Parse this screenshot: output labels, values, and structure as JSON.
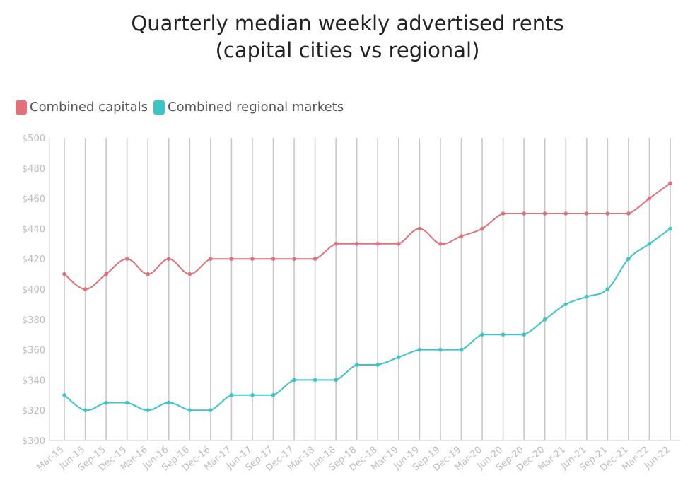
{
  "title_line1": "Quarterly median weekly advertised rents",
  "title_line2": "(capital cities vs regional)",
  "chart_data": {
    "type": "line",
    "title": "Quarterly median weekly advertised rents (capital cities vs regional)",
    "xlabel": "",
    "ylabel": "",
    "ylim": [
      300,
      500
    ],
    "y_ticks": [
      "$300",
      "$320",
      "$340",
      "$360",
      "$380",
      "$400",
      "$420",
      "$440",
      "$460",
      "$480",
      "$500"
    ],
    "grid": "vertical",
    "legend_position": "top-left",
    "categories": [
      "Mar-15",
      "Jun-15",
      "Sep-15",
      "Dec-15",
      "Mar-16",
      "Jun-16",
      "Sep-16",
      "Dec-16",
      "Mar-17",
      "Jun-17",
      "Sep-17",
      "Dec-17",
      "Mar-18",
      "Jun-18",
      "Sep-18",
      "Dec-18",
      "Mar-19",
      "Jun-19",
      "Sep-19",
      "Dec-19",
      "Mar-20",
      "Jun-20",
      "Sep-20",
      "Dec-20",
      "Mar-21",
      "Jun-21",
      "Sep-21",
      "Dec-21",
      "Mar-22",
      "Jun-22"
    ],
    "series": [
      {
        "name": "Combined capitals",
        "color": "#e0707a",
        "values": [
          410,
          400,
          410,
          420,
          410,
          420,
          410,
          420,
          420,
          420,
          420,
          420,
          420,
          430,
          430,
          430,
          430,
          440,
          430,
          435,
          440,
          450,
          450,
          450,
          450,
          450,
          450,
          450,
          460,
          470
        ]
      },
      {
        "name": "Combined regional markets",
        "color": "#3cc4c8",
        "values": [
          330,
          320,
          325,
          325,
          320,
          325,
          320,
          320,
          330,
          330,
          330,
          340,
          340,
          340,
          350,
          350,
          355,
          360,
          360,
          360,
          370,
          370,
          370,
          380,
          390,
          395,
          400,
          420,
          430,
          440
        ]
      }
    ]
  }
}
